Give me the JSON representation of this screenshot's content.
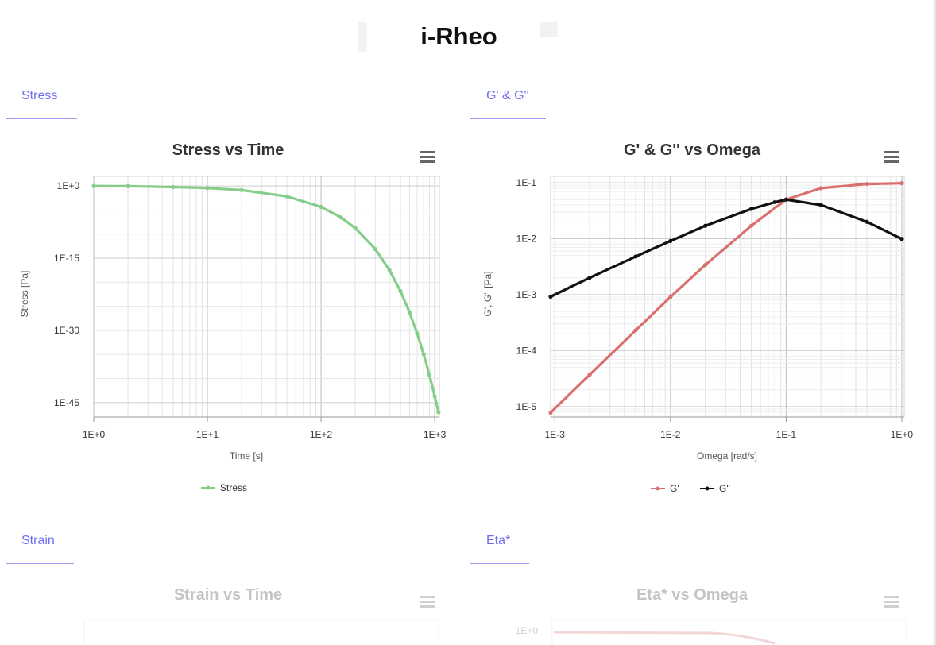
{
  "app": {
    "title": "i-Rheo"
  },
  "tabs": {
    "stress": "Stress",
    "gg": "G' & G''",
    "strain": "Strain",
    "eta": "Eta*"
  },
  "charts": {
    "stress": {
      "title": "Stress vs Time"
    },
    "gg": {
      "title": "G' & G'' vs Omega"
    },
    "strain": {
      "title": "Strain vs Time"
    },
    "eta": {
      "title": "Eta* vs Omega",
      "partial_tick": "1E+0"
    }
  },
  "icons": {
    "menu": "hamburger-menu-icon"
  },
  "colors": {
    "stress": "#86cd8a",
    "gprime": "#d9706e",
    "gdoubleprime": "#111111",
    "tab": "#6c6cf0"
  },
  "chart_data": [
    {
      "type": "line",
      "title": "Stress vs Time",
      "xlabel": "Time [s]",
      "ylabel": "Stress [Pa]",
      "xscale": "log",
      "yscale": "log",
      "xlim": [
        1,
        1100
      ],
      "ylim": [
        1e-48,
        100.0
      ],
      "xticks": [
        "1E+0",
        "1E+1",
        "1E+2",
        "1E+3"
      ],
      "yticks": [
        "1E+0",
        "1E-15",
        "1E-30",
        "1E-45"
      ],
      "legend": "bottom",
      "series": [
        {
          "name": "Stress",
          "color": "#86cd8a",
          "x": [
            1,
            2,
            5,
            10,
            20,
            50,
            100,
            150,
            200,
            300,
            400,
            500,
            600,
            700,
            800,
            900,
            1000,
            1080
          ],
          "y": [
            1,
            0.9,
            0.6,
            0.37,
            0.14,
            0.007,
            4.5e-05,
            2.9e-07,
            1.8e-09,
            7.7e-14,
            3.3e-18,
            1.4e-22,
            6e-27,
            2.6e-31,
            1.1e-35,
            4.8e-40,
            2e-44,
            1e-47
          ]
        }
      ]
    },
    {
      "type": "line",
      "title": "G' & G'' vs Omega",
      "xlabel": "Omega [rad/s]",
      "ylabel": "G', G'' [Pa]",
      "xscale": "log",
      "yscale": "log",
      "xlim": [
        0.00092,
        1.05
      ],
      "ylim": [
        6.5e-06,
        0.13
      ],
      "xticks": [
        "1E-3",
        "1E-2",
        "1E-1",
        "1E+0"
      ],
      "yticks": [
        "1E-1",
        "1E-2",
        "1E-3",
        "1E-4",
        "1E-5"
      ],
      "legend": "bottom",
      "series": [
        {
          "name": "G'",
          "color": "#d9706e",
          "x": [
            0.00092,
            0.002,
            0.005,
            0.01,
            0.02,
            0.05,
            0.1,
            0.2,
            0.5,
            1
          ],
          "y": [
            7.8e-06,
            3.7e-05,
            0.00023,
            0.00091,
            0.0034,
            0.017,
            0.05,
            0.08,
            0.095,
            0.098
          ]
        },
        {
          "name": "G''",
          "color": "#111111",
          "x": [
            0.00092,
            0.002,
            0.005,
            0.01,
            0.02,
            0.05,
            0.08,
            0.1,
            0.2,
            0.5,
            1
          ],
          "y": [
            0.00092,
            0.002,
            0.0048,
            0.0091,
            0.017,
            0.034,
            0.045,
            0.05,
            0.04,
            0.02,
            0.0099
          ]
        }
      ]
    }
  ]
}
